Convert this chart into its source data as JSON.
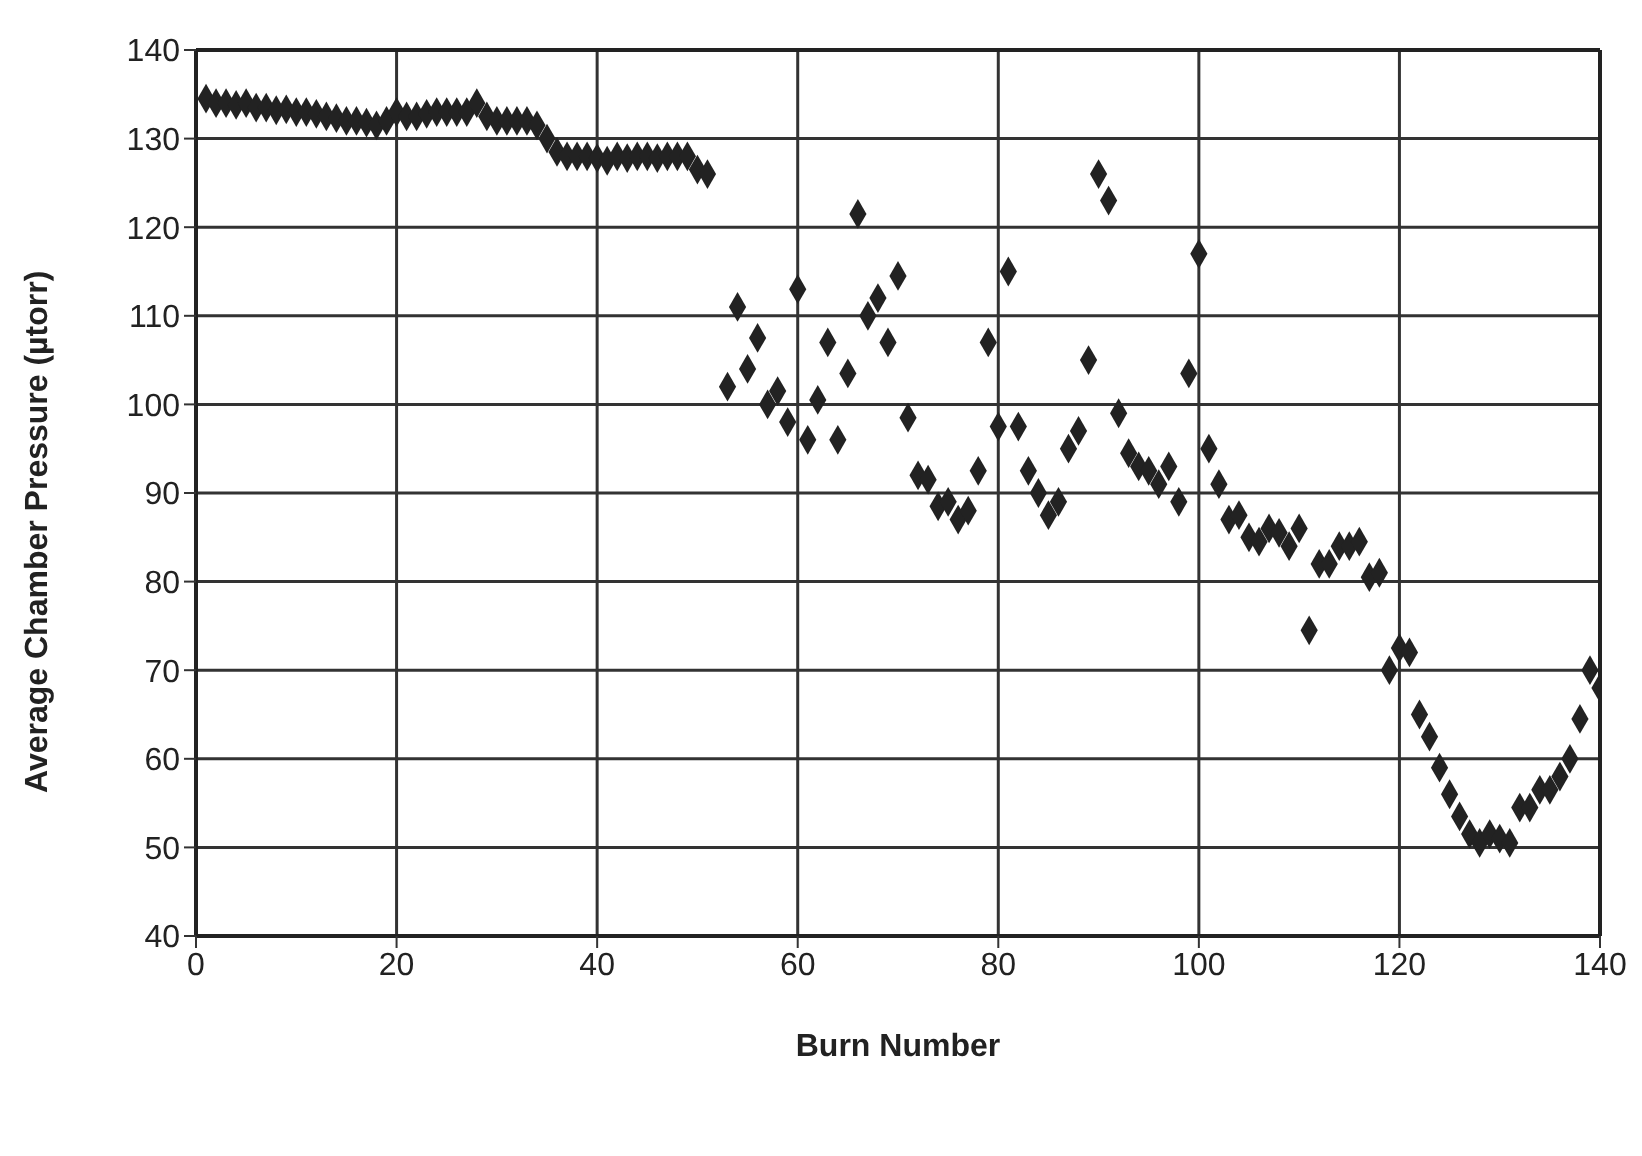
{
  "chart_data": {
    "type": "scatter",
    "xlabel": "Burn Number",
    "ylabel": "Average Chamber Pressure (µtorr)",
    "x": [
      1,
      2,
      3,
      4,
      5,
      6,
      7,
      8,
      9,
      10,
      11,
      12,
      13,
      14,
      15,
      16,
      17,
      18,
      19,
      20,
      21,
      22,
      23,
      24,
      25,
      26,
      27,
      28,
      29,
      30,
      31,
      32,
      33,
      34,
      35,
      36,
      37,
      38,
      39,
      40,
      41,
      42,
      43,
      44,
      45,
      46,
      47,
      48,
      49,
      50,
      51,
      53,
      54,
      55,
      56,
      57,
      58,
      59,
      60,
      61,
      62,
      63,
      64,
      65,
      66,
      67,
      68,
      69,
      70,
      71,
      72,
      73,
      74,
      75,
      76,
      77,
      78,
      79,
      80,
      81,
      82,
      83,
      84,
      85,
      86,
      87,
      88,
      89,
      90,
      91,
      92,
      93,
      94,
      95,
      96,
      97,
      98,
      99,
      100,
      101,
      102,
      103,
      104,
      105,
      106,
      107,
      108,
      109,
      110,
      111,
      112,
      113,
      114,
      115,
      116,
      117,
      118,
      119,
      120,
      121,
      122,
      123,
      124,
      125,
      126,
      127,
      128,
      129,
      130,
      131,
      132,
      133,
      134,
      135,
      136,
      137,
      138,
      139,
      140
    ],
    "series": [
      {
        "color": "#222222",
        "values": [
          134.5,
          134,
          134,
          133.8,
          134,
          133.5,
          133.5,
          133.2,
          133.3,
          133,
          133,
          132.8,
          132.5,
          132.3,
          132,
          132,
          131.8,
          131.5,
          132,
          133,
          132.5,
          132.5,
          132.8,
          133,
          133,
          133,
          133,
          134,
          132.5,
          132,
          132,
          132,
          132,
          131.5,
          130,
          128.5,
          128,
          128,
          128,
          127.8,
          127.5,
          128,
          127.8,
          128,
          128,
          127.8,
          128,
          128,
          128,
          126.5,
          126,
          102,
          111,
          104,
          107.5,
          100,
          101.5,
          98,
          113,
          96,
          100.5,
          107,
          96,
          103.5,
          121.5,
          110,
          112,
          107,
          114.5,
          98.5,
          92,
          91.5,
          88.5,
          89,
          87,
          88,
          92.5,
          107,
          97.5,
          115,
          97.5,
          92.5,
          90,
          87.5,
          89,
          95,
          97,
          105,
          126,
          123,
          99,
          94.5,
          93,
          92.5,
          91,
          93,
          89,
          103.5,
          117,
          95,
          91,
          87,
          87.5,
          85,
          84.5,
          86,
          85.5,
          84,
          86,
          74.5,
          82,
          82,
          84,
          84,
          84.5,
          80.5,
          81,
          70,
          72.5,
          72,
          65,
          62.5,
          59,
          56,
          53.5,
          51.5,
          50.5,
          51.5,
          51,
          50.5,
          54.5,
          54.5,
          56.5,
          56.5,
          58,
          60,
          64.5,
          70,
          68
        ]
      }
    ],
    "xlim": [
      0,
      140
    ],
    "xticks": [
      0,
      20,
      40,
      60,
      80,
      100,
      120,
      140
    ],
    "ylim": [
      40,
      140
    ],
    "yticks": [
      40,
      50,
      60,
      70,
      80,
      90,
      100,
      110,
      120,
      130,
      140
    ],
    "grid": true,
    "marker": "diamond"
  }
}
